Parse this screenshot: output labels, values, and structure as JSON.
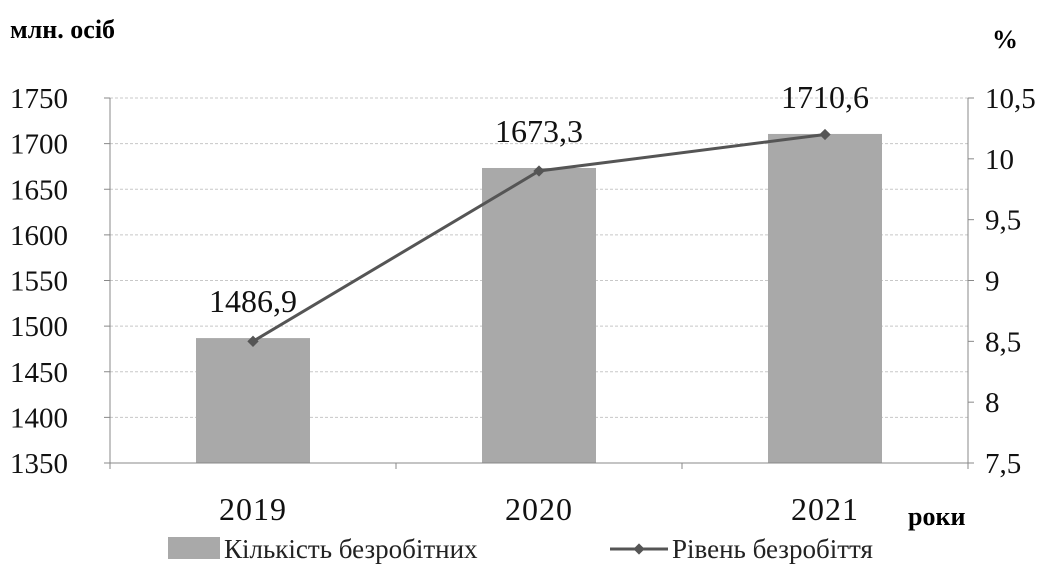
{
  "chart_data": {
    "type": "bar",
    "categories": [
      "2019",
      "2020",
      "2021"
    ],
    "series": [
      {
        "name": "Кількість безробітних",
        "type": "bar",
        "axis": "left",
        "values": [
          1486.9,
          1673.3,
          1710.6
        ],
        "data_labels": [
          "1486,9",
          "1673,3",
          "1710,6"
        ],
        "color": "#a9a9a9"
      },
      {
        "name": "Рівень безробіття",
        "type": "line",
        "axis": "right",
        "values": [
          8.5,
          9.9,
          10.2
        ],
        "color": "#555555"
      }
    ],
    "y_left": {
      "label": "млн. осіб",
      "ylim": [
        1350,
        1750
      ],
      "ticks": [
        "1350",
        "1400",
        "1450",
        "1500",
        "1550",
        "1600",
        "1650",
        "1700",
        "1750"
      ]
    },
    "y_right": {
      "label": "%",
      "ylim": [
        7.5,
        10.5
      ],
      "ticks": [
        "7,5",
        "8",
        "8,5",
        "9",
        "9,5",
        "10",
        "10,5"
      ]
    },
    "xlabel": "роки",
    "grid": true,
    "legend_position": "bottom"
  }
}
